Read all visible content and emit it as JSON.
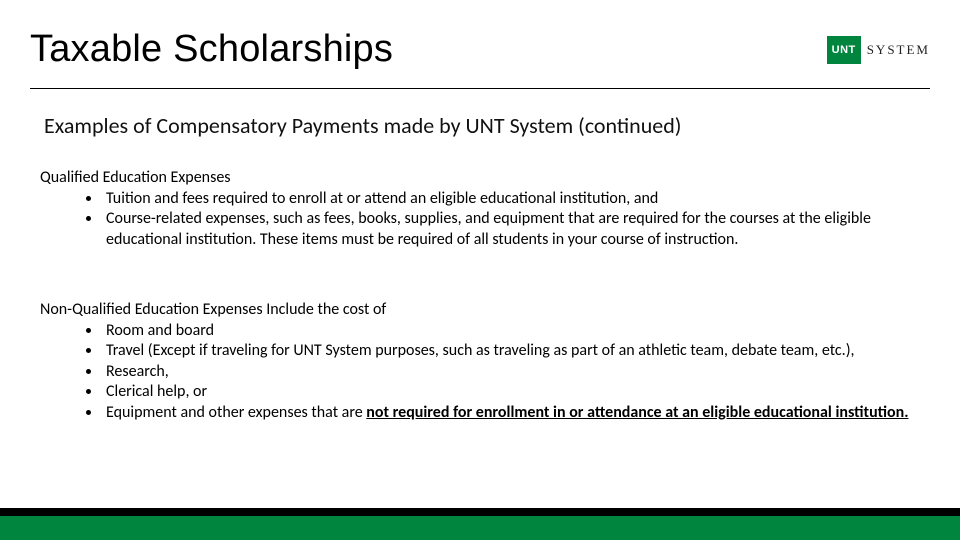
{
  "colors": {
    "brand_green": "#00853E",
    "black": "#000000",
    "white": "#ffffff"
  },
  "title": "Taxable Scholarships",
  "logo": {
    "badge_text": "UNT",
    "text": "SYSTEM"
  },
  "subtitle": "Examples of Compensatory Payments made by UNT System (continued)",
  "section1": {
    "heading": "Qualified Education Expenses",
    "items": [
      "Tuition and fees required to enroll at or attend an eligible educational institution, and",
      "Course-related expenses, such as fees, books, supplies, and equipment that are required for the courses at the eligible educational institution. These items must be required of all students in your course of instruction."
    ]
  },
  "section2": {
    "heading": "Non-Qualified Education Expenses Include the cost of",
    "items": [
      "Room and board",
      "Travel (Except if traveling for UNT System purposes, such as traveling as part of an athletic team, debate team, etc.),",
      " Research,",
      " Clerical help, or"
    ],
    "last_item_prefix": " Equipment and other expenses that are ",
    "last_item_underlined": "not required for enrollment in or attendance at an eligible educational institution."
  }
}
